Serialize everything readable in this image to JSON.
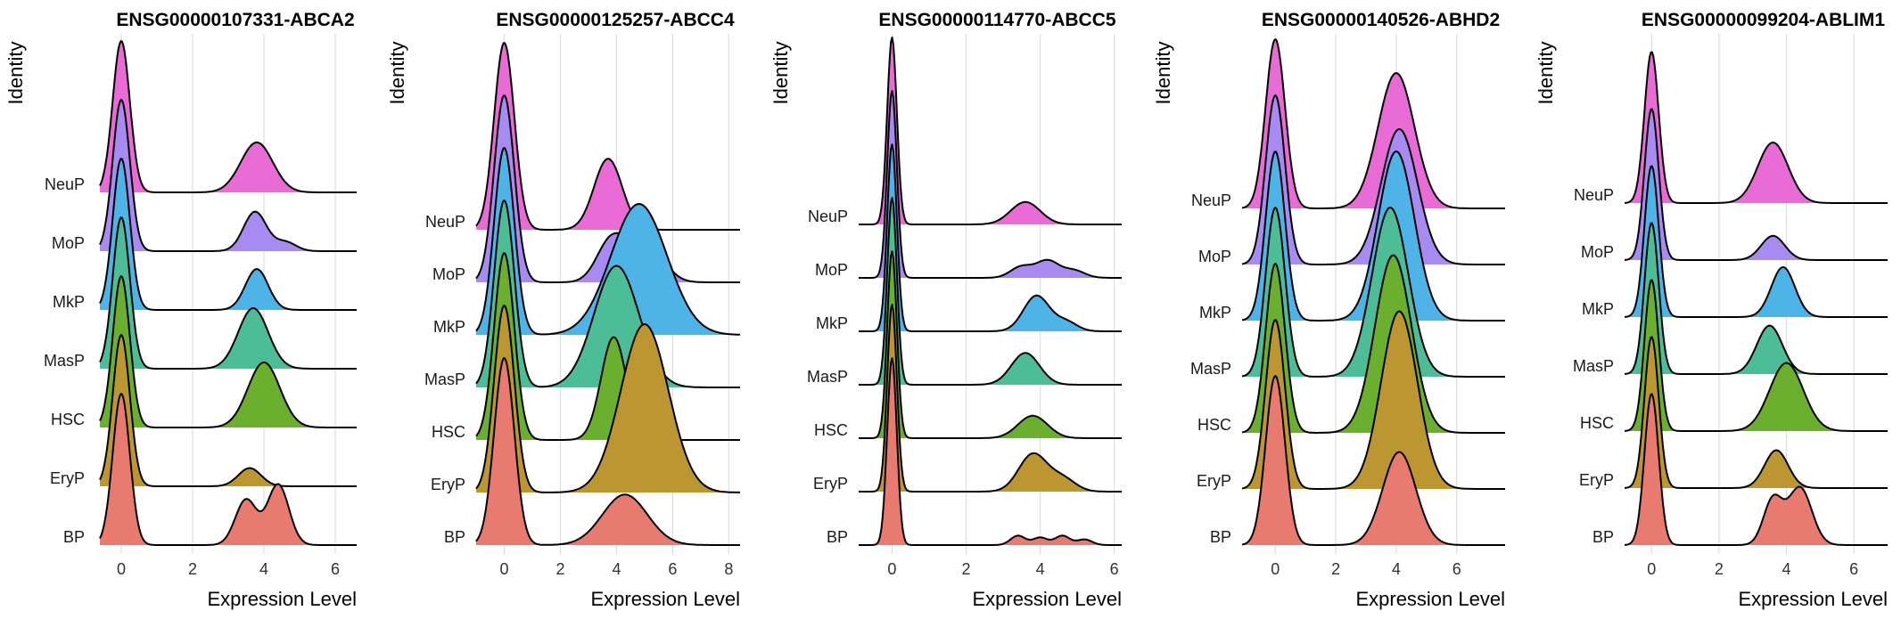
{
  "figure_title": "",
  "categories": [
    "BP",
    "EryP",
    "HSC",
    "MasP",
    "MkP",
    "MoP",
    "NeuP"
  ],
  "colors": {
    "NeuP": "#E86BD6",
    "MoP": "#A78BF0",
    "MkP": "#4EB3E6",
    "MasP": "#4DBD97",
    "HSC": "#6AAF2E",
    "EryP": "#BC9630",
    "BP": "#E97A70"
  },
  "chart_data": [
    {
      "type": "ridgeline",
      "title": "ENSG00000107331-ABCA2",
      "xlabel": "Expression Level",
      "ylabel": "Identity",
      "xlim": [
        -0.6,
        6.6
      ],
      "x_ticks": [
        0,
        2,
        4,
        6
      ],
      "grid": true,
      "ridges": [
        {
          "name": "BP",
          "zero_height": 1.0,
          "zero_sd": 0.24,
          "bumps": [
            [
              3.5,
              0.3,
              0.3
            ],
            [
              4.4,
              0.4,
              0.3
            ]
          ]
        },
        {
          "name": "EryP",
          "zero_height": 1.0,
          "zero_sd": 0.24,
          "bumps": [
            [
              3.6,
              0.12,
              0.32
            ]
          ]
        },
        {
          "name": "HSC",
          "zero_height": 1.0,
          "zero_sd": 0.24,
          "bumps": [
            [
              4.0,
              0.43,
              0.45
            ]
          ]
        },
        {
          "name": "MasP",
          "zero_height": 1.0,
          "zero_sd": 0.24,
          "bumps": [
            [
              3.7,
              0.4,
              0.42
            ]
          ]
        },
        {
          "name": "MkP",
          "zero_height": 1.0,
          "zero_sd": 0.24,
          "bumps": [
            [
              3.8,
              0.27,
              0.32
            ]
          ]
        },
        {
          "name": "MoP",
          "zero_height": 1.0,
          "zero_sd": 0.24,
          "bumps": [
            [
              3.75,
              0.26,
              0.32
            ],
            [
              4.6,
              0.06,
              0.3
            ]
          ]
        },
        {
          "name": "NeuP",
          "zero_height": 1.0,
          "zero_sd": 0.24,
          "bumps": [
            [
              3.8,
              0.33,
              0.45
            ]
          ]
        }
      ]
    },
    {
      "type": "ridgeline",
      "title": "ENSG00000125257-ABCC4",
      "xlabel": "Expression Level",
      "ylabel": "Identity",
      "xlim": [
        -1.0,
        8.4
      ],
      "x_ticks": [
        0,
        2,
        4,
        6,
        8
      ],
      "grid": true,
      "ridges": [
        {
          "name": "BP",
          "zero_height": 1.0,
          "zero_sd": 0.36,
          "bumps": [
            [
              4.3,
              0.27,
              0.8
            ]
          ]
        },
        {
          "name": "EryP",
          "zero_height": 1.0,
          "zero_sd": 0.36,
          "bumps": [
            [
              5.0,
              0.9,
              0.85
            ]
          ]
        },
        {
          "name": "HSC",
          "zero_height": 1.0,
          "zero_sd": 0.36,
          "bumps": [
            [
              3.9,
              0.55,
              0.45
            ]
          ]
        },
        {
          "name": "MasP",
          "zero_height": 1.0,
          "zero_sd": 0.36,
          "bumps": [
            [
              4.0,
              0.65,
              0.8
            ]
          ]
        },
        {
          "name": "MkP",
          "zero_height": 1.0,
          "zero_sd": 0.36,
          "bumps": [
            [
              4.8,
              0.7,
              1.0
            ]
          ]
        },
        {
          "name": "MoP",
          "zero_height": 1.0,
          "zero_sd": 0.36,
          "bumps": [
            [
              3.8,
              0.22,
              0.5
            ],
            [
              5.0,
              0.24,
              0.6
            ]
          ]
        },
        {
          "name": "NeuP",
          "zero_height": 1.0,
          "zero_sd": 0.36,
          "bumps": [
            [
              3.7,
              0.38,
              0.5
            ]
          ]
        }
      ]
    },
    {
      "type": "ridgeline",
      "title": "ENSG00000114770-ABCC5",
      "xlabel": "Expression Level",
      "ylabel": "Identity",
      "xlim": [
        -0.9,
        6.2
      ],
      "x_ticks": [
        0,
        2,
        4,
        6
      ],
      "grid": true,
      "ridges": [
        {
          "name": "BP",
          "zero_height": 1.0,
          "zero_sd": 0.13,
          "bumps": [
            [
              3.4,
              0.05,
              0.2
            ],
            [
              4.0,
              0.04,
              0.2
            ],
            [
              4.6,
              0.05,
              0.2
            ],
            [
              5.2,
              0.03,
              0.2
            ]
          ]
        },
        {
          "name": "EryP",
          "zero_height": 1.0,
          "zero_sd": 0.13,
          "bumps": [
            [
              3.8,
              0.2,
              0.38
            ],
            [
              4.6,
              0.07,
              0.35
            ]
          ]
        },
        {
          "name": "HSC",
          "zero_height": 1.0,
          "zero_sd": 0.13,
          "bumps": [
            [
              3.8,
              0.12,
              0.4
            ]
          ]
        },
        {
          "name": "MasP",
          "zero_height": 1.0,
          "zero_sd": 0.13,
          "bumps": [
            [
              3.6,
              0.17,
              0.38
            ]
          ]
        },
        {
          "name": "MkP",
          "zero_height": 1.0,
          "zero_sd": 0.13,
          "bumps": [
            [
              3.9,
              0.19,
              0.35
            ],
            [
              4.7,
              0.05,
              0.3
            ]
          ]
        },
        {
          "name": "MoP",
          "zero_height": 1.0,
          "zero_sd": 0.13,
          "bumps": [
            [
              3.5,
              0.06,
              0.3
            ],
            [
              4.2,
              0.09,
              0.3
            ],
            [
              4.9,
              0.04,
              0.3
            ]
          ]
        },
        {
          "name": "NeuP",
          "zero_height": 1.0,
          "zero_sd": 0.13,
          "bumps": [
            [
              3.6,
              0.12,
              0.4
            ]
          ]
        }
      ]
    },
    {
      "type": "ridgeline",
      "title": "ENSG00000140526-ABHD2",
      "xlabel": "Expression Level",
      "ylabel": "Identity",
      "xlim": [
        -1.1,
        7.6
      ],
      "x_ticks": [
        0,
        2,
        4,
        6
      ],
      "grid": true,
      "ridges": [
        {
          "name": "BP",
          "zero_height": 1.0,
          "zero_sd": 0.32,
          "bumps": [
            [
              4.1,
              0.55,
              0.55
            ]
          ]
        },
        {
          "name": "EryP",
          "zero_height": 1.0,
          "zero_sd": 0.32,
          "bumps": [
            [
              4.1,
              1.05,
              0.6
            ]
          ]
        },
        {
          "name": "HSC",
          "zero_height": 1.0,
          "zero_sd": 0.32,
          "bumps": [
            [
              3.9,
              1.05,
              0.6
            ]
          ]
        },
        {
          "name": "MasP",
          "zero_height": 1.0,
          "zero_sd": 0.32,
          "bumps": [
            [
              3.8,
              1.0,
              0.6
            ]
          ]
        },
        {
          "name": "MkP",
          "zero_height": 1.0,
          "zero_sd": 0.32,
          "bumps": [
            [
              4.0,
              1.0,
              0.6
            ]
          ]
        },
        {
          "name": "MoP",
          "zero_height": 1.0,
          "zero_sd": 0.32,
          "bumps": [
            [
              4.1,
              0.8,
              0.6
            ]
          ]
        },
        {
          "name": "NeuP",
          "zero_height": 1.0,
          "zero_sd": 0.32,
          "bumps": [
            [
              4.0,
              0.8,
              0.6
            ]
          ]
        }
      ]
    },
    {
      "type": "ridgeline",
      "title": "ENSG00000099204-ABLIM1",
      "xlabel": "Expression Level",
      "ylabel": "Identity",
      "xlim": [
        -0.8,
        7.0
      ],
      "x_ticks": [
        0,
        2,
        4,
        6
      ],
      "grid": true,
      "ridges": [
        {
          "name": "BP",
          "zero_height": 1.0,
          "zero_sd": 0.21,
          "bumps": [
            [
              3.6,
              0.3,
              0.28
            ],
            [
              4.4,
              0.38,
              0.35
            ]
          ]
        },
        {
          "name": "EryP",
          "zero_height": 1.0,
          "zero_sd": 0.21,
          "bumps": [
            [
              3.7,
              0.25,
              0.35
            ]
          ]
        },
        {
          "name": "HSC",
          "zero_height": 1.0,
          "zero_sd": 0.21,
          "bumps": [
            [
              4.0,
              0.45,
              0.5
            ]
          ]
        },
        {
          "name": "MasP",
          "zero_height": 1.0,
          "zero_sd": 0.21,
          "bumps": [
            [
              3.5,
              0.32,
              0.38
            ]
          ]
        },
        {
          "name": "MkP",
          "zero_height": 1.0,
          "zero_sd": 0.21,
          "bumps": [
            [
              3.9,
              0.33,
              0.35
            ]
          ]
        },
        {
          "name": "MoP",
          "zero_height": 1.0,
          "zero_sd": 0.21,
          "bumps": [
            [
              3.6,
              0.16,
              0.35
            ]
          ]
        },
        {
          "name": "NeuP",
          "zero_height": 1.0,
          "zero_sd": 0.21,
          "bumps": [
            [
              3.6,
              0.4,
              0.45
            ]
          ]
        }
      ]
    }
  ]
}
